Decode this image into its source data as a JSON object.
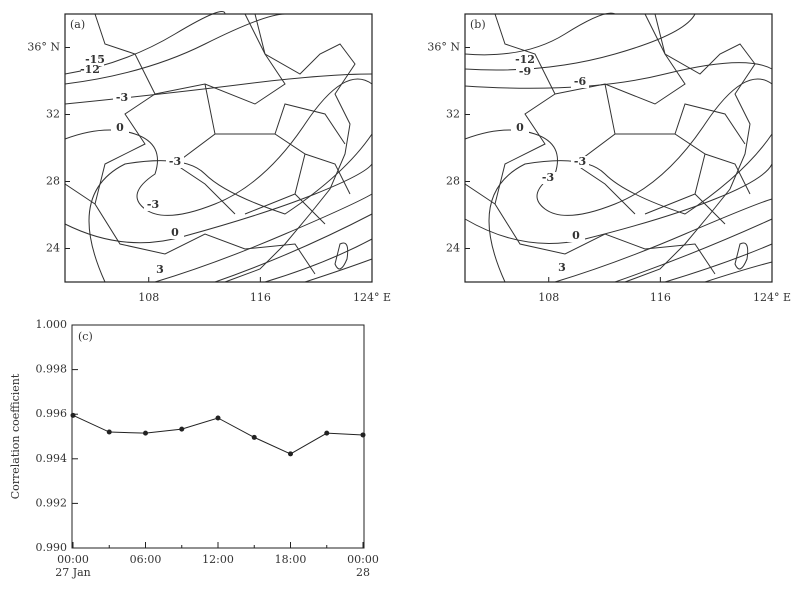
{
  "chart_data": [
    {
      "type": "map",
      "panel_label": "(a)",
      "xlim": [
        102,
        124
      ],
      "ylim": [
        22,
        38
      ],
      "xticks": [
        108,
        116,
        {
          "value": 124,
          "label": "124° E"
        }
      ],
      "yticks": [
        24,
        28,
        32,
        {
          "value": 36,
          "label": "36° N"
        }
      ],
      "contour_labels": [
        -15,
        -12,
        -3,
        0,
        -3,
        -3,
        0,
        3
      ]
    },
    {
      "type": "map",
      "panel_label": "(b)",
      "xlim": [
        102,
        124
      ],
      "ylim": [
        22,
        38
      ],
      "xticks": [
        108,
        116,
        {
          "value": 124,
          "label": "124° E"
        }
      ],
      "yticks": [
        24,
        28,
        32,
        {
          "value": 36,
          "label": "36° N"
        }
      ],
      "contour_labels": [
        -12,
        -9,
        -6,
        0,
        -3,
        -3,
        0,
        3
      ]
    },
    {
      "type": "line",
      "panel_label": "(c)",
      "ylabel": "Correlation coefficient",
      "categories": [
        "00:00",
        null,
        "06:00",
        null,
        "12:00",
        null,
        "18:00",
        null,
        "00:00"
      ],
      "date_labels": [
        "27 Jan",
        null,
        null,
        null,
        null,
        null,
        null,
        null,
        "28"
      ],
      "values": [
        0.99595,
        0.9952,
        0.99515,
        0.99533,
        0.99583,
        0.99496,
        0.99422,
        0.99515,
        0.99507
      ],
      "color": "#222222",
      "ylim": [
        0.99,
        1.0
      ],
      "yticks": [
        {
          "value": 0.99,
          "label": "0.990"
        },
        {
          "value": 0.992,
          "label": "0.992"
        },
        {
          "value": 0.994,
          "label": "0.994"
        },
        {
          "value": 0.996,
          "label": "0.996"
        },
        {
          "value": 0.998,
          "label": "0.998"
        },
        {
          "value": 1.0,
          "label": "1.000"
        }
      ]
    }
  ]
}
